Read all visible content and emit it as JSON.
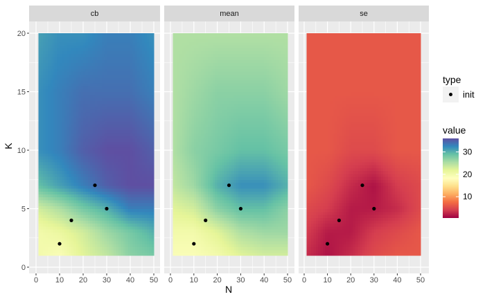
{
  "chart_data": {
    "type": "heatmap",
    "xlabel": "N",
    "ylabel": "K",
    "xlim": [
      0,
      50
    ],
    "ylim": [
      0,
      20
    ],
    "x_ticks": [
      0,
      10,
      20,
      30,
      40,
      50
    ],
    "y_ticks": [
      0,
      5,
      10,
      15,
      20
    ],
    "grid": true,
    "raster_x_range": [
      1,
      50
    ],
    "raster_y_range": [
      1,
      20
    ],
    "grid_x": [
      1,
      10,
      20,
      30,
      40,
      50
    ],
    "grid_y": [
      1,
      3,
      5,
      7,
      10,
      15,
      20
    ],
    "facets": [
      {
        "label": "cb",
        "values": [
          [
            20,
            19,
            22,
            24,
            27,
            28
          ],
          [
            20,
            21,
            23,
            26,
            28,
            30
          ],
          [
            23,
            25,
            28,
            30,
            33,
            33
          ],
          [
            29,
            31,
            33,
            35,
            36,
            36
          ],
          [
            32,
            33,
            35,
            36,
            36,
            35
          ],
          [
            32,
            33,
            34,
            34,
            34,
            33
          ],
          [
            31,
            32,
            32,
            33,
            33,
            32
          ]
        ]
      },
      {
        "label": "mean",
        "values": [
          [
            19,
            19,
            20,
            22,
            23,
            23
          ],
          [
            20,
            20,
            22,
            25,
            26,
            26
          ],
          [
            22,
            23,
            27,
            29,
            29,
            27
          ],
          [
            24,
            26,
            30,
            32,
            32,
            30
          ],
          [
            25,
            27,
            28,
            29,
            29,
            28
          ],
          [
            25,
            26,
            27,
            27,
            27,
            26
          ],
          [
            25,
            25,
            25,
            25,
            25,
            25
          ]
        ]
      },
      {
        "label": "se",
        "values": [
          [
            3,
            1.5,
            3,
            5,
            6,
            6
          ],
          [
            4,
            2,
            2,
            4,
            5,
            6
          ],
          [
            5,
            4,
            2,
            2,
            3,
            5
          ],
          [
            6,
            5,
            3,
            1.5,
            4,
            5
          ],
          [
            6,
            6,
            5,
            5,
            6,
            6
          ],
          [
            6,
            6,
            6,
            6,
            6,
            6
          ],
          [
            6,
            6,
            6,
            6,
            6,
            6
          ]
        ]
      }
    ],
    "points": {
      "name": "init",
      "x": [
        10,
        15,
        25,
        30
      ],
      "y": [
        2,
        4,
        7,
        5
      ]
    },
    "legend": {
      "placement": "right",
      "shape_title": "type",
      "shape_label": "init",
      "fill_title": "value",
      "fill_range": [
        0.5,
        36
      ],
      "fill_ticks": [
        10,
        20,
        30
      ],
      "palette": [
        "#9E0142",
        "#D53E4F",
        "#F46D43",
        "#FDAE61",
        "#FEE08B",
        "#FFFFBF",
        "#E6F598",
        "#ABDDA4",
        "#66C2A5",
        "#3288BD",
        "#5E4FA2"
      ]
    }
  }
}
